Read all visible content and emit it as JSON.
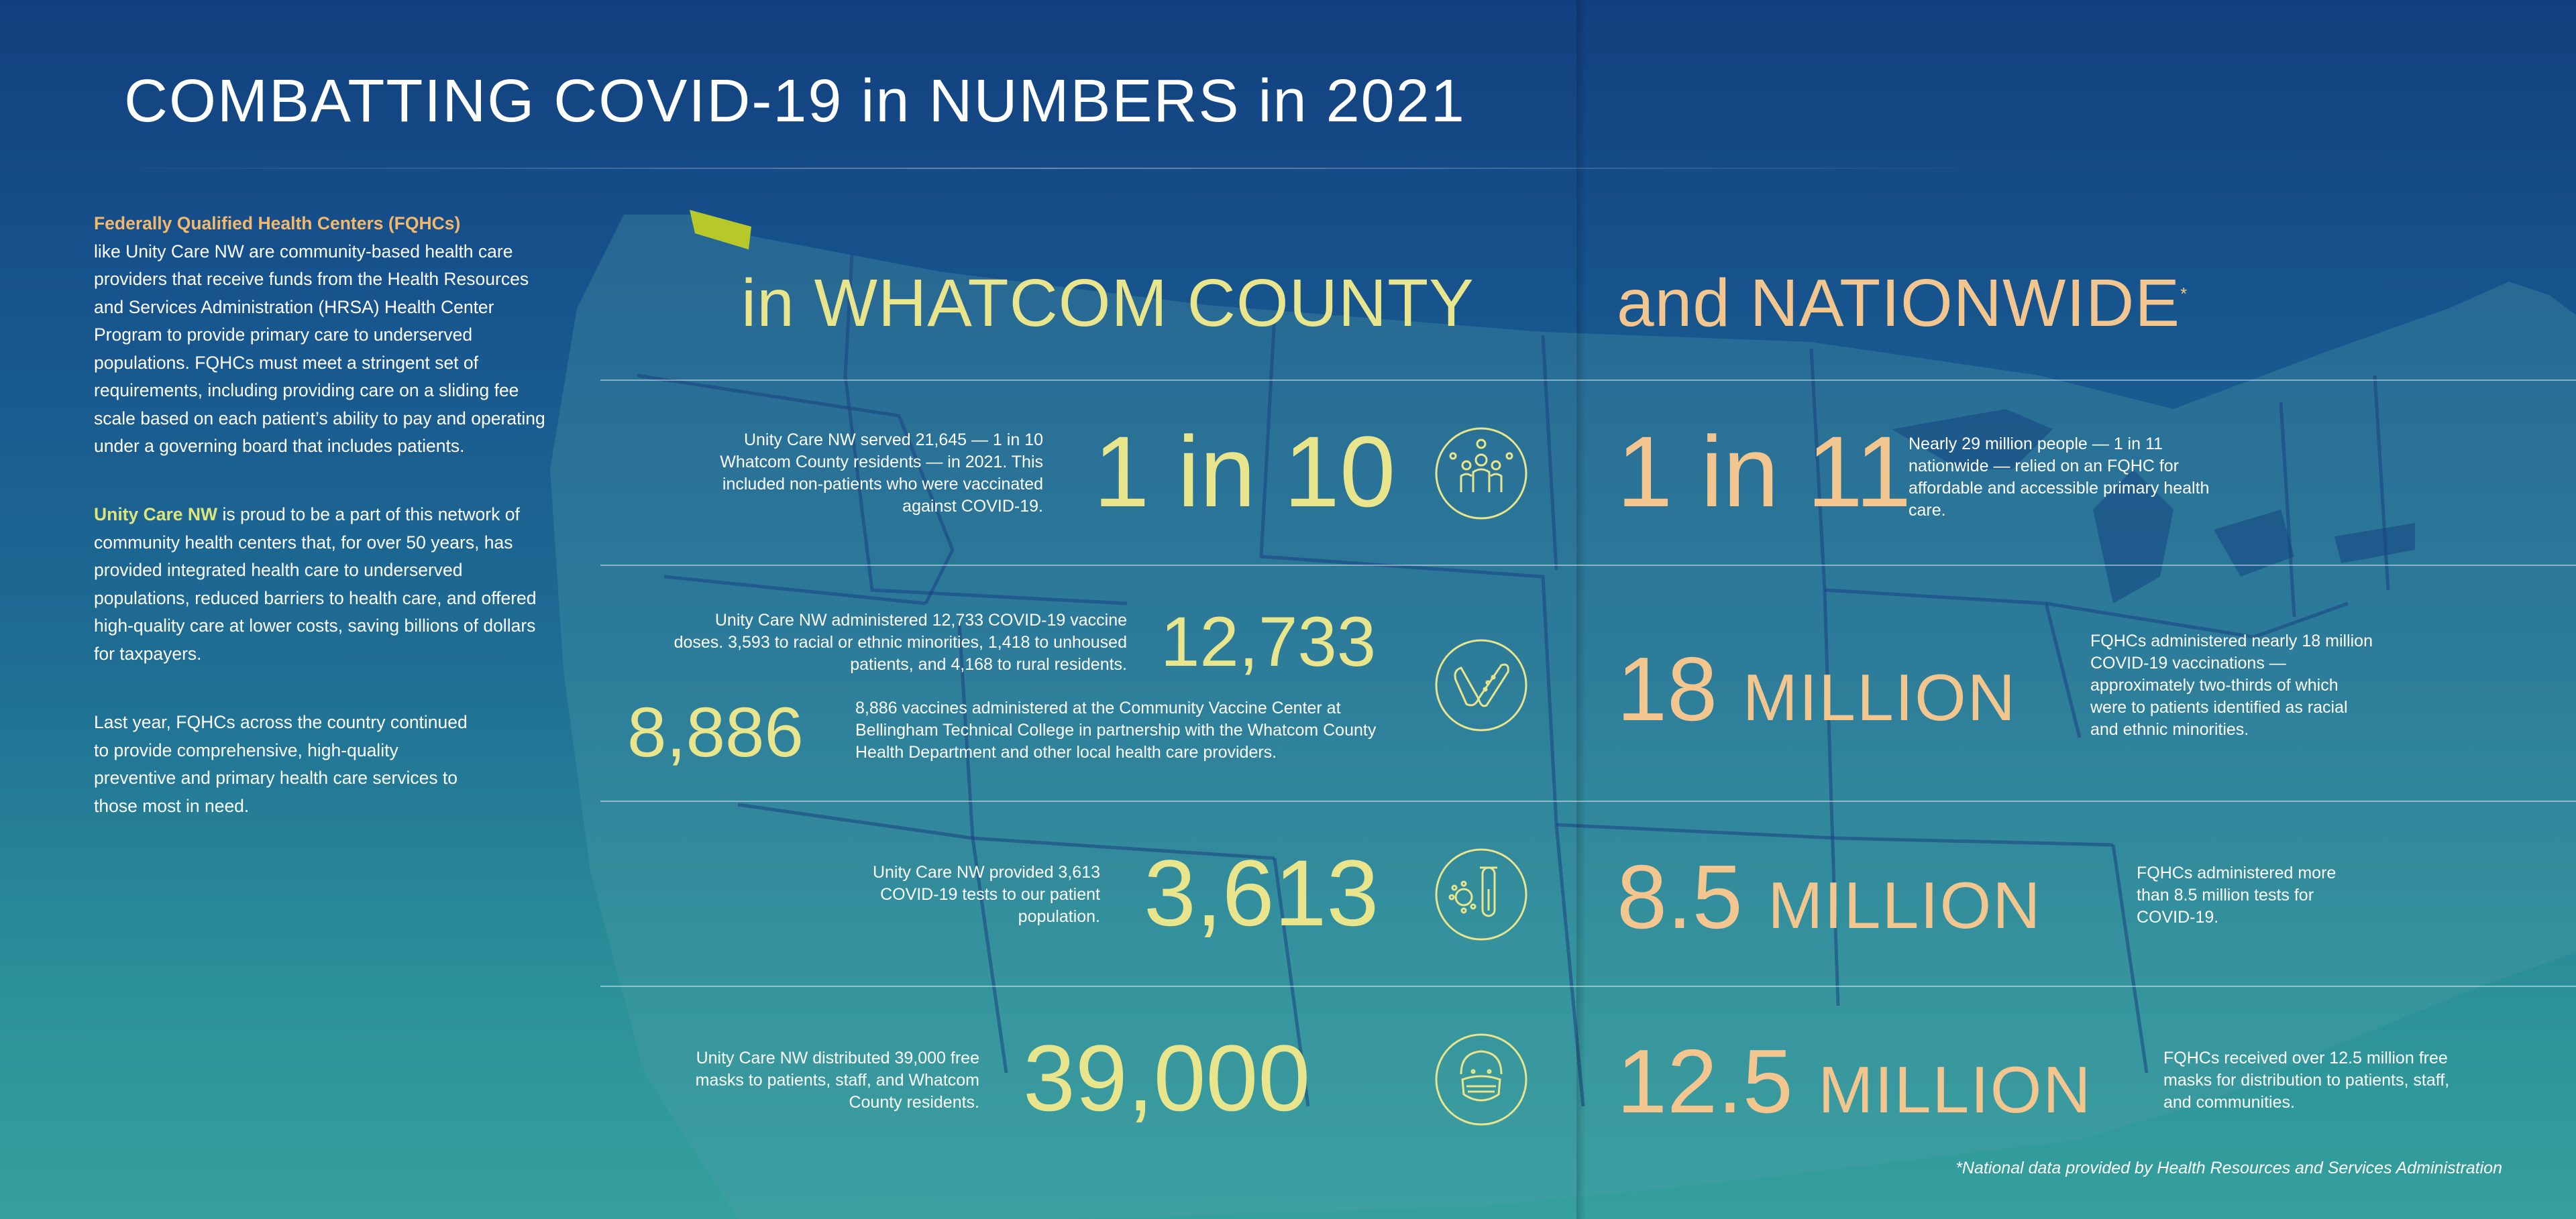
{
  "title": "COMBATTING COVID-19 in NUMBERS in 2021",
  "intro": {
    "p1_lead": "Federally Qualified Health Centers (FQHCs)",
    "p1_text": "like Unity Care NW are community-based health care providers that receive funds from the Health Resources and Services Administration (HRSA) Health Center Program to provide primary care to underserved populations. FQHCs must meet a stringent set of requirements, including providing care on a sliding fee scale based on each patient’s ability to pay and operating under a governing board that includes patients.",
    "p2_lead": "Unity Care NW",
    "p2_text": "is proud to be a part of this network of community health centers that, for over 50 years, has provided integrated health care to underserved populations, reduced barriers to health care, and offered high-quality care at lower costs, saving billions of dollars for taxpayers.",
    "p3_text": "Last year, FQHCs across the country continued to provide comprehensive, high-quality preventive and primary health care services to those most in need."
  },
  "headers": {
    "local": "in WHATCOM COUNTY",
    "national": "and NATIONWIDE",
    "national_mark": "*"
  },
  "rows": {
    "r1": {
      "local_desc": "Unity Care NW served 21,645 — 1 in 10 Whatcom County residents — in 2021. This included non-patients who were vaccinated against COVID-19.",
      "local_num": "1 in 10",
      "icon": "people-virus-icon",
      "nat_num": "1 in 11",
      "nat_desc": "Nearly 29 million people — 1 in 11 nationwide — relied on an FQHC for affordable and accessible primary health care."
    },
    "r2": {
      "local_desc": "Unity Care NW administered 12,733 COVID-19 vaccine doses. 3,593 to racial or ethnic minorities, 1,418 to unhoused patients, and 4,168 to rural residents.",
      "local_num": "12,733",
      "local_num2": "8,886",
      "local_desc2": "8,886 vaccines administered at the Community Vaccine Center at Bellingham Technical College in partnership with the Whatcom County Health Department and other local health care providers.",
      "icon": "bandage-check-icon",
      "nat_num": "18",
      "nat_unit": "MILLION",
      "nat_desc": "FQHCs administered nearly 18 million COVID-19 vaccinations — approximately two-thirds of which were to patients identified as racial and ethnic minorities."
    },
    "r3": {
      "local_desc": "Unity Care NW provided 3,613 COVID-19 tests to our patient population.",
      "local_num": "3,613",
      "icon": "test-tube-virus-icon",
      "nat_num": "8.5",
      "nat_unit": "MILLION",
      "nat_desc": "FQHCs administered more than 8.5 million tests for COVID-19."
    },
    "r4": {
      "local_desc": "Unity Care NW distributed 39,000 free masks to patients, staff, and Whatcom County residents.",
      "local_num": "39,000",
      "icon": "masked-face-icon",
      "nat_num": "12.5",
      "nat_unit": "MILLION",
      "nat_desc": "FQHCs received over 12.5 million free masks for distribution to patients, staff, and communities."
    }
  },
  "footnote": "*National data provided by Health Resources and Services Administration",
  "colors": {
    "local_accent": "#e8e58c",
    "national_accent": "#f3c690",
    "whatcom_highlight": "#b7c92a"
  }
}
